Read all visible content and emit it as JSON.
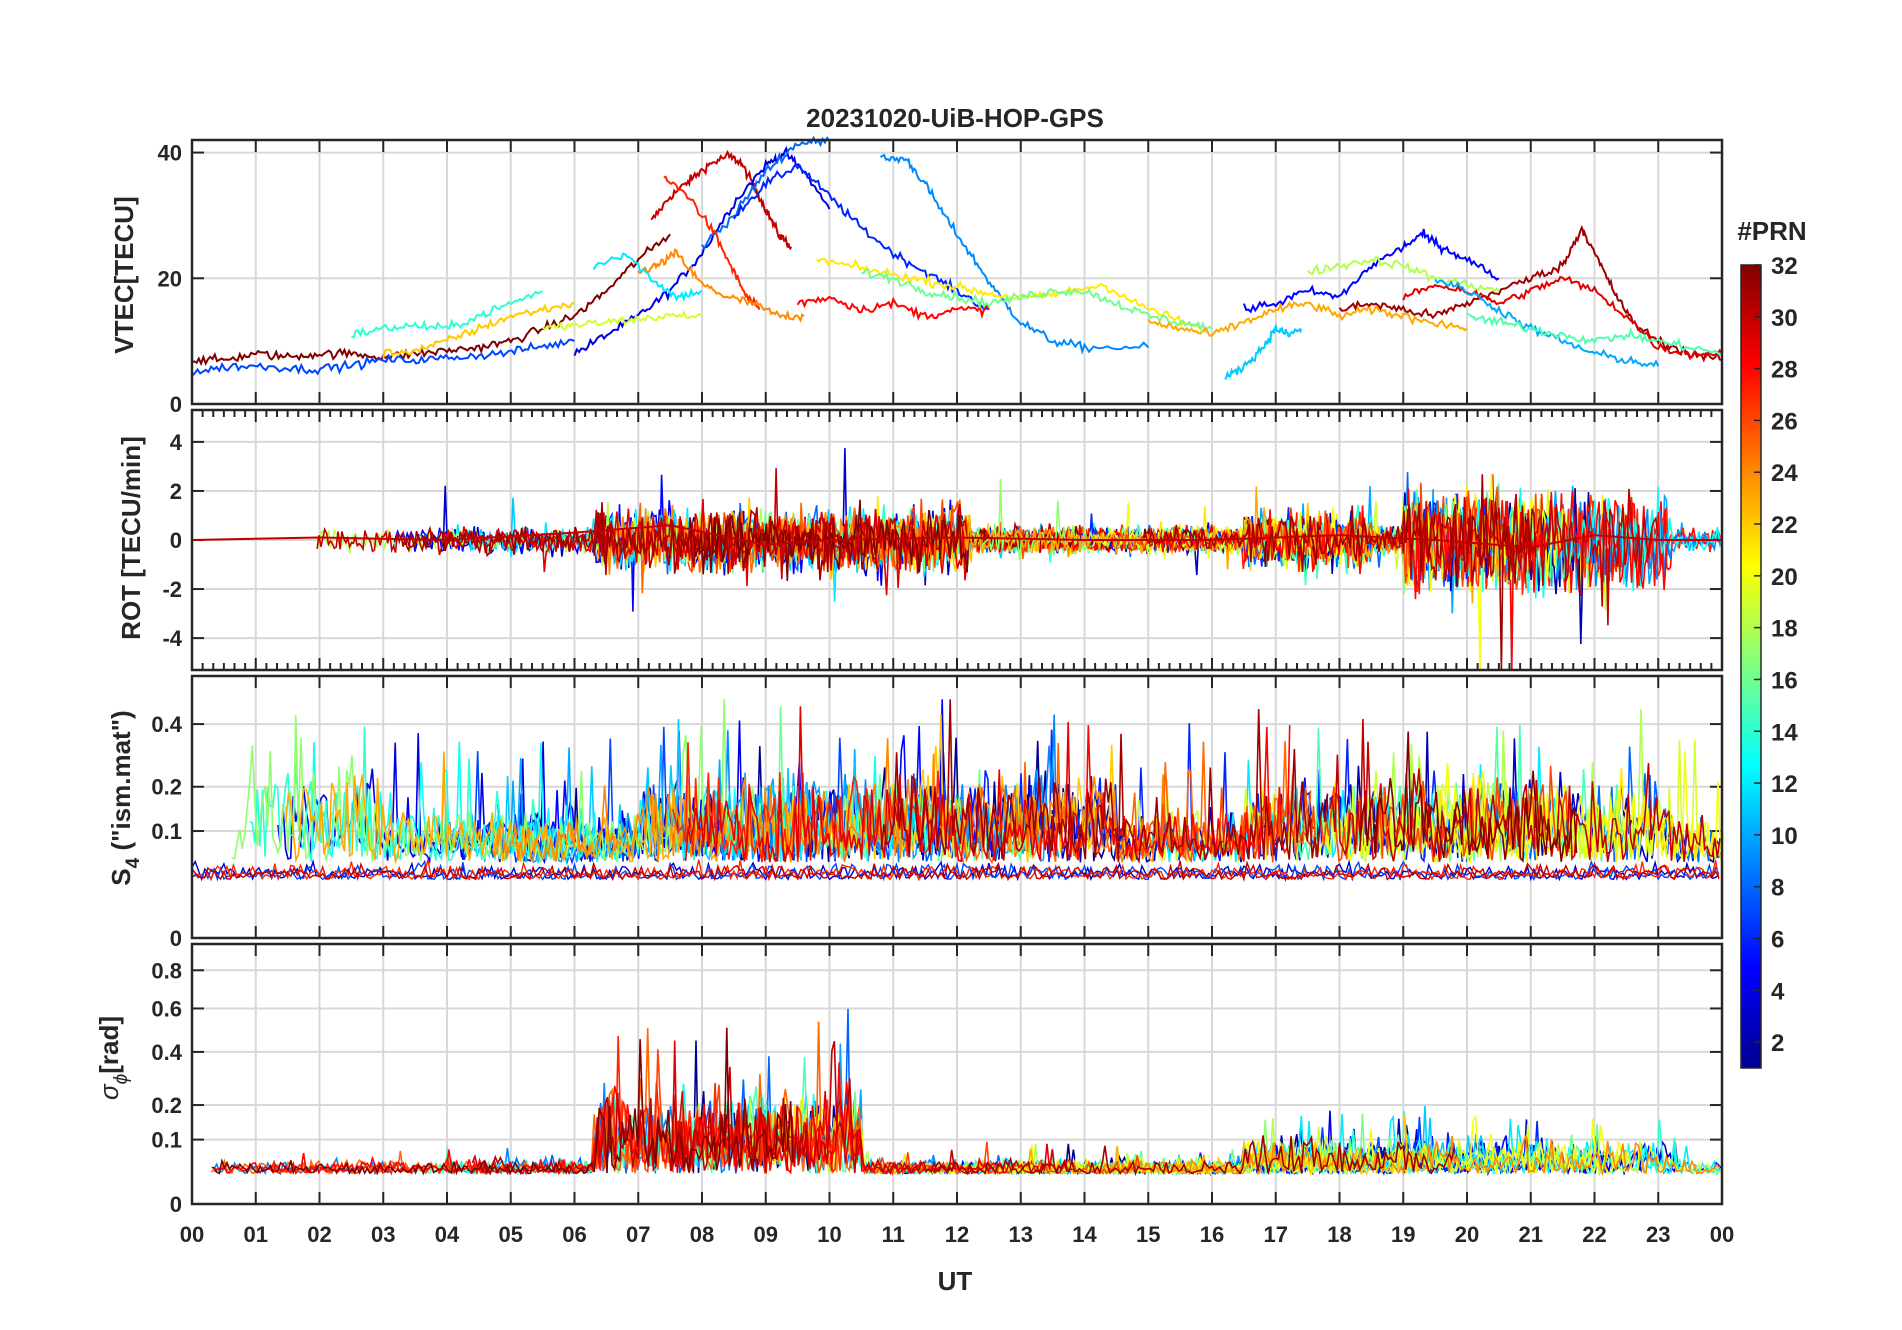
{
  "title": "20231020-UiB-HOP-GPS",
  "x_axis": {
    "label": "UT",
    "ticks": [
      "00",
      "01",
      "02",
      "03",
      "04",
      "05",
      "06",
      "07",
      "08",
      "09",
      "10",
      "11",
      "12",
      "13",
      "14",
      "15",
      "16",
      "17",
      "18",
      "19",
      "20",
      "21",
      "22",
      "23",
      "00"
    ]
  },
  "colorbar": {
    "title": "#PRN",
    "range": [
      1,
      32
    ],
    "ticks": [
      "2",
      "4",
      "6",
      "8",
      "10",
      "12",
      "14",
      "16",
      "18",
      "20",
      "22",
      "24",
      "26",
      "28",
      "30",
      "32"
    ],
    "colormap": [
      "#00008f",
      "#0000ff",
      "#0080ff",
      "#00ffff",
      "#80ff80",
      "#ffff00",
      "#ff8000",
      "#ff0000",
      "#800000"
    ]
  },
  "panels": {
    "vtec": {
      "ylabel": "VTEC[TECU]",
      "yticks": [
        "0",
        "20",
        "40"
      ]
    },
    "rot": {
      "ylabel": "ROT [TECU/min]",
      "yticks": [
        "-4",
        "-2",
        "0",
        "2",
        "4"
      ]
    },
    "s4": {
      "ylabel_main": "S",
      "ylabel_sub": "4",
      "ylabel_rest": " (\"ism.mat\")",
      "yticks": [
        "0",
        "0.1",
        "0.2",
        "0.4"
      ]
    },
    "sigma": {
      "ylabel_main": "σ",
      "ylabel_sub": "ϕ",
      "ylabel_rest": "[rad]",
      "yticks": [
        "0",
        "0.1",
        "0.2",
        "0.4",
        "0.6",
        "0.8"
      ]
    }
  },
  "chart_data": [
    {
      "type": "line",
      "title": "20231020-UiB-HOP-GPS",
      "xlabel": "UT",
      "ylabel": "VTEC[TECU]",
      "xlim": [
        0,
        24
      ],
      "ylim": [
        0,
        42
      ],
      "grid": true,
      "colorbar": "#PRN",
      "series": [
        {
          "prn": 30,
          "x": [
            7.2,
            7.5,
            7.8,
            8.1,
            8.4,
            8.6,
            8.8,
            9.0,
            9.2,
            9.4
          ],
          "y": [
            29,
            33,
            35.5,
            38,
            39.5,
            38.5,
            35,
            31,
            27,
            25
          ]
        },
        {
          "prn": 4,
          "x": [
            6.0,
            6.5,
            7.0,
            7.5,
            8.0,
            8.5,
            9.0,
            9.3,
            9.6,
            10.0
          ],
          "y": [
            8,
            11,
            14,
            18,
            24,
            32,
            38,
            40,
            37,
            31
          ]
        },
        {
          "prn": 8,
          "x": [
            8.0,
            8.5,
            9.0,
            9.5,
            10.0
          ],
          "y": [
            25,
            30,
            37,
            41.5,
            41.8
          ]
        },
        {
          "prn": 6,
          "x": [
            8.5,
            9.0,
            9.5,
            10.0,
            10.5,
            11.0,
            11.5,
            12.0,
            12.5
          ],
          "y": [
            30,
            35,
            38,
            33,
            28,
            24,
            21,
            18,
            15
          ]
        },
        {
          "prn": 9,
          "x": [
            10.8,
            11.2,
            11.5,
            11.8,
            12.2,
            12.6,
            13.0,
            13.5,
            14.0,
            15.0
          ],
          "y": [
            39,
            39,
            35,
            30,
            24,
            18,
            13,
            10,
            9,
            9
          ]
        },
        {
          "prn": 27,
          "x": [
            7.4,
            7.8,
            8.2,
            8.5,
            8.7,
            8.9
          ],
          "y": [
            36,
            33,
            27,
            21,
            17,
            15
          ]
        },
        {
          "prn": 24,
          "x": [
            7.0,
            7.3,
            7.6,
            8.0,
            8.4,
            8.8,
            9.2,
            9.6
          ],
          "y": [
            21,
            22,
            24,
            19,
            17,
            16,
            14,
            14
          ]
        },
        {
          "prn": 32,
          "x": [
            0,
            0.5,
            1.0,
            1.5,
            2.0,
            2.5,
            3.0,
            3.5,
            4.0,
            4.5,
            5.0,
            5.5,
            6.0,
            6.5,
            7.0,
            7.5
          ],
          "y": [
            7,
            7,
            8,
            7.5,
            8,
            8,
            7.5,
            8,
            8.5,
            9,
            10,
            12,
            14,
            18,
            23,
            27
          ]
        },
        {
          "prn": 7,
          "x": [
            0,
            0.6,
            1.2,
            1.8,
            2.4,
            3.0,
            3.6,
            4.2,
            4.8,
            5.4,
            6.0
          ],
          "y": [
            5,
            6,
            6,
            5.5,
            6,
            7,
            7,
            7.5,
            8,
            9,
            10
          ]
        },
        {
          "prn": 12,
          "x": [
            6.3,
            6.8,
            7.2,
            7.6,
            8.0
          ],
          "y": [
            22,
            24,
            20,
            17,
            18
          ]
        },
        {
          "prn": 19,
          "x": [
            5.5,
            6.0,
            6.5,
            7.0,
            7.5,
            8.0
          ],
          "y": [
            12,
            12.5,
            13,
            13.5,
            14,
            14
          ]
        },
        {
          "prn": 22,
          "x": [
            3.0,
            3.5,
            4.0,
            4.5,
            5.0,
            5.5,
            6.0
          ],
          "y": [
            8,
            8.5,
            10,
            12,
            14,
            15,
            16
          ]
        },
        {
          "prn": 14,
          "x": [
            2.5,
            3.0,
            3.5,
            4.0,
            4.5,
            5.0,
            5.5
          ],
          "y": [
            11,
            12,
            12.5,
            12,
            14,
            16,
            18
          ]
        },
        {
          "prn": 28,
          "x": [
            9.5,
            10.0,
            10.5,
            11.0,
            11.5,
            12.0,
            12.5
          ],
          "y": [
            16,
            17,
            15,
            16,
            14,
            15,
            15
          ]
        },
        {
          "prn": 21,
          "x": [
            9.8,
            10.3,
            10.8,
            11.3,
            11.8,
            12.3,
            12.8,
            13.3,
            13.8,
            14.3,
            14.8,
            15.3,
            15.8
          ],
          "y": [
            23,
            22,
            21,
            20,
            19,
            18,
            17,
            17,
            18,
            19,
            16,
            14,
            12
          ]
        },
        {
          "prn": 16,
          "x": [
            10.5,
            11.0,
            11.5,
            12.0,
            12.5,
            13.0,
            13.5,
            14.0,
            14.5,
            15.0,
            15.5,
            16.0
          ],
          "y": [
            21,
            20,
            18,
            17,
            16,
            17,
            18,
            18,
            16,
            14,
            13,
            12
          ]
        },
        {
          "prn": 11,
          "x": [
            16.2,
            16.5,
            16.8,
            17.0,
            17.2,
            17.4
          ],
          "y": [
            4,
            6,
            9,
            12,
            11,
            12
          ]
        },
        {
          "prn": 23,
          "x": [
            15.0,
            15.5,
            16.0,
            16.5,
            17.0,
            17.5,
            18.0,
            18.5,
            19.0,
            19.5,
            20.0
          ],
          "y": [
            13,
            12,
            11,
            13,
            15,
            16,
            14,
            15,
            14,
            13,
            12
          ]
        },
        {
          "prn": 5,
          "x": [
            16.5,
            17.0,
            17.5,
            18.0,
            18.5,
            19.0,
            19.3,
            19.6,
            20.0,
            20.5
          ],
          "y": [
            15,
            16,
            18,
            17,
            22,
            25,
            27,
            25,
            23,
            20
          ]
        },
        {
          "prn": 18,
          "x": [
            17.5,
            18.0,
            18.5,
            19.0,
            19.5,
            20.0,
            20.5
          ],
          "y": [
            21,
            22,
            23,
            22,
            20,
            19,
            18
          ]
        },
        {
          "prn": 31,
          "x": [
            18.0,
            18.5,
            19.0,
            19.5,
            20.0,
            20.5,
            21.0,
            21.5,
            21.8,
            22.0,
            22.3,
            22.6,
            23.0,
            23.5,
            24.0
          ],
          "y": [
            15,
            16,
            15,
            14,
            16,
            18,
            20,
            22,
            28,
            24,
            18,
            13,
            10,
            8,
            7
          ]
        },
        {
          "prn": 29,
          "x": [
            19.0,
            19.5,
            20.0,
            20.5,
            21.0,
            21.5,
            22.0,
            22.5,
            23.0,
            23.5,
            24.0
          ],
          "y": [
            17,
            19,
            18,
            16,
            18,
            20,
            18,
            14,
            9,
            8,
            8
          ]
        },
        {
          "prn": 10,
          "x": [
            19.5,
            20.0,
            20.5,
            21.0,
            21.5,
            22.0,
            22.5,
            23.0
          ],
          "y": [
            20,
            18,
            15,
            12,
            10,
            8,
            7,
            6
          ]
        },
        {
          "prn": 15,
          "x": [
            20.0,
            20.5,
            21.0,
            21.5,
            22.0,
            22.5,
            23.0,
            23.5,
            24.0
          ],
          "y": [
            14,
            13,
            12,
            11,
            10,
            11,
            10,
            9,
            8
          ]
        }
      ]
    },
    {
      "type": "line",
      "xlabel": "UT",
      "ylabel": "ROT [TECU/min]",
      "xlim": [
        0,
        24
      ],
      "ylim": [
        -5.3,
        5.3
      ],
      "grid": true,
      "note": "noisy rate-of-TEC series around 0; larger spread 06-12 UT and 19-23 UT",
      "series": [
        {
          "prn": 30,
          "x": [
            0,
            2,
            4,
            6,
            7.5,
            9,
            10,
            12,
            14,
            16,
            18,
            19.5,
            21,
            22,
            23,
            24
          ],
          "y": [
            0,
            0.1,
            0,
            0.3,
            0.6,
            -0.2,
            0,
            0.1,
            0,
            0,
            0.2,
            0,
            -0.3,
            0.2,
            0,
            0
          ]
        }
      ]
    },
    {
      "type": "line",
      "xlabel": "UT",
      "ylabel": "S4 (\"ism.mat\")",
      "xlim": [
        0,
        24
      ],
      "ylim": [
        0,
        0.6
      ],
      "yscale": "sqrt-like (ticks 0, 0.1, 0.2, 0.4)",
      "grid": true,
      "note": "noisy scintillation index per PRN, values 0.03-0.6",
      "series": []
    },
    {
      "type": "line",
      "xlabel": "UT",
      "ylabel": "σϕ[rad]",
      "xlim": [
        0,
        24
      ],
      "ylim": [
        0,
        0.95
      ],
      "yscale": "sqrt-like (ticks 0, 0.1, 0.2, 0.4, 0.6, 0.8)",
      "grid": true,
      "note": "phase scintillation mostly 0.03-0.1; peaks to 0.8 near 07-09 UT",
      "series": []
    }
  ]
}
